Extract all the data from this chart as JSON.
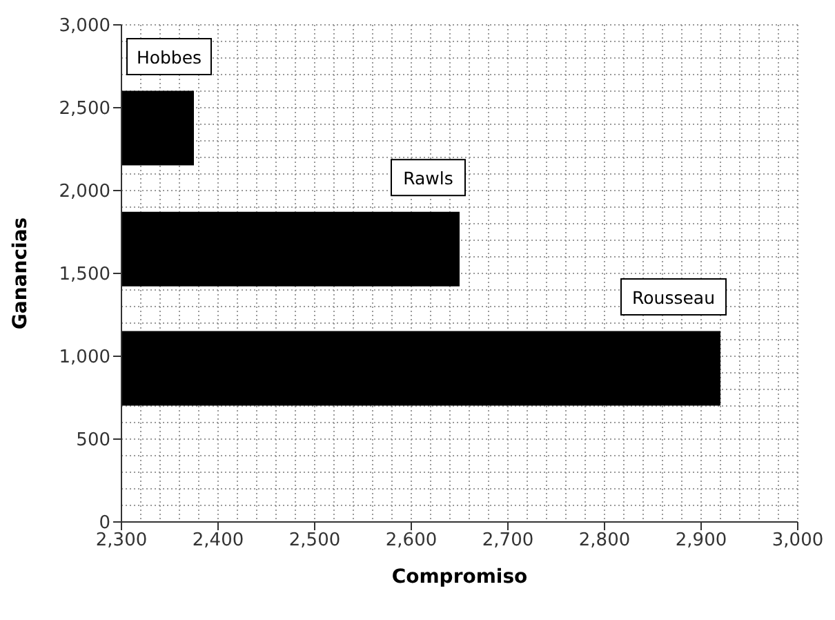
{
  "chart_data": {
    "type": "bar",
    "orientation": "horizontal",
    "xlabel": "Compromiso",
    "ylabel": "Ganancias",
    "x": [
      925,
      1645,
      2375
    ],
    "values": [
      2920,
      2650,
      2375
    ],
    "color": "#000000",
    "xlim": [
      2300,
      3000
    ],
    "xticks": [
      {
        "value": 2300,
        "label": "2,300"
      },
      {
        "value": 2400,
        "label": "2,400"
      },
      {
        "value": 2500,
        "label": "2,500"
      },
      {
        "value": 2600,
        "label": "2,600"
      },
      {
        "value": 2700,
        "label": "2,700"
      },
      {
        "value": 2800,
        "label": "2,800"
      },
      {
        "value": 2900,
        "label": "2,900"
      },
      {
        "value": 3000,
        "label": "3,000"
      }
    ],
    "ylim": [
      0,
      3000
    ],
    "yticks": [
      0,
      500,
      {
        "value": 1000,
        "label": "1,000"
      },
      {
        "value": 1500,
        "label": "1,500"
      },
      {
        "value": 2000,
        "label": "2,000"
      },
      {
        "value": 2500,
        "label": "2,500"
      },
      {
        "value": 3000,
        "label": "3,000"
      }
    ],
    "grid": true,
    "annotations": [
      "Rousseau",
      "Rawls",
      "Hobbes"
    ]
  }
}
